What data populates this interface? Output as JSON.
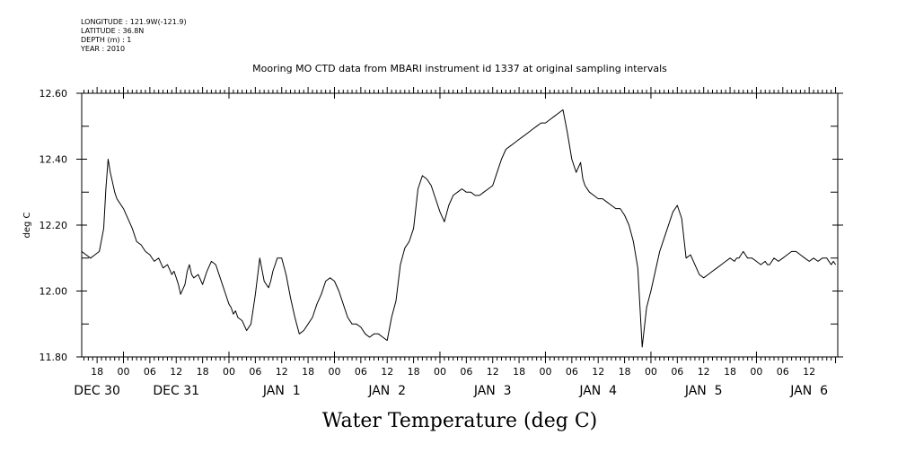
{
  "header": {
    "longitude": "LONGITUDE : 121.9W(-121.9)",
    "latitude": "LATITUDE : 36.8N",
    "depth": "DEPTH (m) : 1",
    "year": "YEAR : 2010"
  },
  "chart_data": {
    "type": "line",
    "title": "Mooring MO CTD data from MBARI instrument id 1337 at original sampling intervals",
    "xlabel": "Water Temperature (deg C)",
    "ylabel": "deg C",
    "ylim": [
      11.8,
      12.6
    ],
    "yticks": [
      "11.80",
      "12.00",
      "12.20",
      "12.40",
      "12.60"
    ],
    "x_unit": "hours since 2009-12-30 00:00",
    "xlim": [
      14.5,
      186.5
    ],
    "hour_ticks": [
      {
        "t": 18,
        "label": "18"
      },
      {
        "t": 24,
        "label": "00"
      },
      {
        "t": 30,
        "label": "06"
      },
      {
        "t": 36,
        "label": "12"
      },
      {
        "t": 42,
        "label": "18"
      },
      {
        "t": 48,
        "label": "00"
      },
      {
        "t": 54,
        "label": "06"
      },
      {
        "t": 60,
        "label": "12"
      },
      {
        "t": 66,
        "label": "18"
      },
      {
        "t": 72,
        "label": "00"
      },
      {
        "t": 78,
        "label": "06"
      },
      {
        "t": 84,
        "label": "12"
      },
      {
        "t": 90,
        "label": "18"
      },
      {
        "t": 96,
        "label": "00"
      },
      {
        "t": 102,
        "label": "06"
      },
      {
        "t": 108,
        "label": "12"
      },
      {
        "t": 114,
        "label": "18"
      },
      {
        "t": 120,
        "label": "00"
      },
      {
        "t": 126,
        "label": "06"
      },
      {
        "t": 132,
        "label": "12"
      },
      {
        "t": 138,
        "label": "18"
      },
      {
        "t": 144,
        "label": "00"
      },
      {
        "t": 150,
        "label": "06"
      },
      {
        "t": 156,
        "label": "12"
      },
      {
        "t": 162,
        "label": "18"
      },
      {
        "t": 168,
        "label": "00"
      },
      {
        "t": 174,
        "label": "06"
      },
      {
        "t": 180,
        "label": "12"
      }
    ],
    "day_labels": [
      {
        "t": 18,
        "label": "DEC 30"
      },
      {
        "t": 36,
        "label": "DEC 31"
      },
      {
        "t": 60,
        "label": "JAN  1"
      },
      {
        "t": 84,
        "label": "JAN  2"
      },
      {
        "t": 108,
        "label": "JAN  3"
      },
      {
        "t": 132,
        "label": "JAN  4"
      },
      {
        "t": 156,
        "label": "JAN  5"
      },
      {
        "t": 180,
        "label": "JAN  6"
      }
    ],
    "series": [
      {
        "x": [
          14.5,
          15.5,
          16.5,
          17.5,
          18.5,
          19.5,
          20.0,
          20.5,
          21.0,
          21.5,
          22.0,
          22.5,
          23.0,
          24.0,
          25.0,
          26.0,
          27.0,
          28.0,
          29.0,
          30.0,
          31.0,
          32.0,
          33.0,
          34.0,
          35.0,
          35.5,
          36.0,
          36.5,
          37.0,
          38.0,
          38.5,
          39.0,
          39.5,
          40.0,
          41.0,
          42.0,
          43.0,
          44.0,
          45.0,
          46.0,
          47.0,
          48.0,
          48.5,
          49.0,
          49.5,
          50.0,
          51.0,
          52.0,
          53.0,
          54.0,
          55.0,
          56.0,
          56.5,
          57.0,
          57.5,
          58.0,
          58.5,
          59.0,
          60.0,
          61.0,
          62.0,
          63.0,
          64.0,
          65.0,
          66.0,
          67.0,
          68.0,
          69.0,
          70.0,
          71.0,
          72.0,
          73.0,
          74.0,
          75.0,
          76.0,
          77.0,
          78.0,
          79.0,
          80.0,
          81.0,
          82.0,
          83.0,
          84.0,
          85.0,
          86.0,
          87.0,
          88.0,
          89.0,
          90.0,
          91.0,
          92.0,
          93.0,
          94.0,
          95.0,
          96.0,
          97.0,
          98.0,
          99.0,
          100.0,
          101.0,
          102.0,
          103.0,
          104.0,
          105.0,
          106.0,
          107.0,
          108.0,
          109.0,
          110.0,
          111.0,
          112.0,
          113.0,
          114.0,
          115.0,
          116.0,
          117.0,
          118.0,
          119.0,
          120.0,
          121.0,
          122.0,
          123.0,
          124.0,
          125.0,
          126.0,
          127.0,
          128.0,
          128.5,
          129.0,
          130.0,
          131.0,
          132.0,
          133.0,
          134.0,
          135.0,
          136.0,
          137.0,
          138.0,
          139.0,
          140.0,
          141.0,
          142.0,
          143.0,
          144.0,
          145.0,
          146.0,
          147.0,
          148.0,
          149.0,
          150.0,
          151.0,
          152.0,
          153.0,
          154.0,
          155.0,
          156.0,
          157.0,
          158.0,
          159.0,
          160.0,
          161.0,
          162.0,
          163.0,
          163.5,
          164.0,
          164.5,
          165.0,
          165.5,
          166.0,
          167.0,
          168.0,
          169.0,
          170.0,
          170.5,
          171.0,
          172.0,
          173.0,
          174.0,
          175.0,
          176.0,
          177.0,
          178.0,
          179.0,
          180.0,
          181.0,
          182.0,
          183.0,
          184.0,
          185.0,
          185.5,
          186.0
        ],
        "y": [
          12.12,
          12.11,
          12.1,
          12.11,
          12.12,
          12.19,
          12.31,
          12.4,
          12.36,
          12.33,
          12.3,
          12.28,
          12.27,
          12.25,
          12.22,
          12.19,
          12.15,
          12.14,
          12.12,
          12.11,
          12.09,
          12.1,
          12.07,
          12.08,
          12.05,
          12.06,
          12.04,
          12.02,
          11.99,
          12.02,
          12.06,
          12.08,
          12.05,
          12.04,
          12.05,
          12.02,
          12.06,
          12.09,
          12.08,
          12.04,
          12.0,
          11.96,
          11.95,
          11.93,
          11.94,
          11.92,
          11.91,
          11.88,
          11.9,
          11.99,
          12.1,
          12.03,
          12.02,
          12.01,
          12.03,
          12.06,
          12.08,
          12.1,
          12.1,
          12.05,
          11.98,
          11.92,
          11.87,
          11.88,
          11.9,
          11.92,
          11.96,
          11.99,
          12.03,
          12.04,
          12.03,
          12.0,
          11.96,
          11.92,
          11.9,
          11.9,
          11.89,
          11.87,
          11.86,
          11.87,
          11.87,
          11.86,
          11.85,
          11.92,
          11.97,
          12.08,
          12.13,
          12.15,
          12.19,
          12.31,
          12.35,
          12.34,
          12.32,
          12.28,
          12.24,
          12.21,
          12.26,
          12.29,
          12.3,
          12.31,
          12.3,
          12.3,
          12.29,
          12.29,
          12.3,
          12.31,
          12.32,
          12.36,
          12.4,
          12.43,
          12.44,
          12.45,
          12.46,
          12.47,
          12.48,
          12.49,
          12.5,
          12.51,
          12.51,
          12.52,
          12.53,
          12.54,
          12.55,
          12.48,
          12.4,
          12.36,
          12.39,
          12.34,
          12.32,
          12.3,
          12.29,
          12.28,
          12.28,
          12.27,
          12.26,
          12.25,
          12.25,
          12.23,
          12.2,
          12.15,
          12.07,
          11.83,
          11.95,
          12.0,
          12.06,
          12.12,
          12.16,
          12.2,
          12.24,
          12.26,
          12.22,
          12.1,
          12.11,
          12.08,
          12.05,
          12.04,
          12.05,
          12.06,
          12.07,
          12.08,
          12.09,
          12.1,
          12.09,
          12.1,
          12.1,
          12.11,
          12.12,
          12.11,
          12.1,
          12.1,
          12.09,
          12.08,
          12.09,
          12.08,
          12.08,
          12.1,
          12.09,
          12.1,
          12.11,
          12.12,
          12.12,
          12.11,
          12.1,
          12.09,
          12.1,
          12.09,
          12.1,
          12.1,
          12.08,
          12.09,
          12.08
        ]
      }
    ],
    "grid": false
  }
}
